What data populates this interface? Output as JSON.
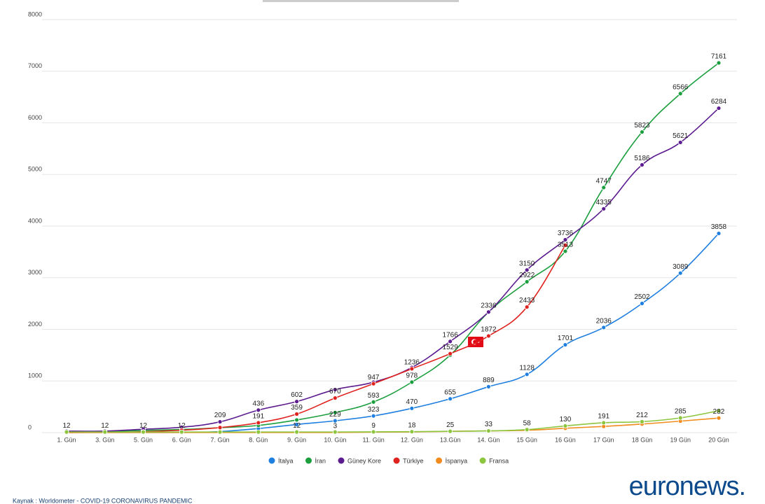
{
  "chart_data": {
    "type": "line",
    "categories": [
      "1. Gün",
      "3. Gün",
      "5. Gün",
      "6. Gün",
      "7. Gün",
      "8. Gün",
      "9. Gün",
      "10. Gün",
      "11. Gün",
      "12. Gün",
      "13.Gün",
      "14. Gün",
      "15 Gün",
      "16 Gün",
      "17 Gün",
      "18 Gün",
      "19 Gün",
      "20 Gün"
    ],
    "ylim": [
      0,
      8000
    ],
    "yticks": [
      0,
      1000,
      2000,
      3000,
      4000,
      5000,
      6000,
      7000,
      8000
    ],
    "grid": true,
    "legend": "bottom",
    "series": [
      {
        "name": "İtalya",
        "color": "#1f7fe0",
        "values": [
          3,
          3,
          3,
          3,
          20,
          79,
          157,
          229,
          323,
          470,
          655,
          889,
          1128,
          1701,
          2036,
          2502,
          3089,
          3858
        ],
        "value_labels": [
          null,
          null,
          null,
          null,
          null,
          null,
          null,
          "229",
          "323",
          "470",
          "655",
          "889",
          "1128",
          "1701",
          "2036",
          "2502",
          "3089",
          "3858"
        ]
      },
      {
        "name": "İran",
        "color": "#1b9e3e",
        "values": [
          2,
          18,
          43,
          61,
          95,
          139,
          245,
          388,
          593,
          978,
          1501,
          2336,
          2922,
          3513,
          4747,
          5823,
          6566,
          7161
        ],
        "value_labels": [
          null,
          null,
          null,
          null,
          null,
          null,
          null,
          null,
          "593",
          "978",
          null,
          null,
          "2922",
          "3513",
          "4747",
          "5823",
          "6566",
          "7161"
        ]
      },
      {
        "name": "Güney Kore",
        "color": "#5c1c8f",
        "values": [
          28,
          30,
          65,
          104,
          209,
          436,
          602,
          833,
          977,
          1261,
          1766,
          2336,
          3150,
          3736,
          4335,
          5186,
          5621,
          6284
        ],
        "value_labels": [
          null,
          null,
          null,
          null,
          "209",
          "436",
          "602",
          null,
          null,
          null,
          "1766",
          "2336",
          "3150",
          "3736",
          "4335",
          "5186",
          "5621",
          "6284"
        ]
      },
      {
        "name": "Türkiye",
        "color": "#e0221f",
        "values": [
          1,
          5,
          18,
          47,
          98,
          191,
          359,
          670,
          947,
          1236,
          1529,
          1872,
          2433,
          3629,
          null,
          null,
          null,
          null
        ],
        "value_labels": [
          null,
          null,
          null,
          null,
          null,
          "191",
          "359",
          "670",
          "947",
          "1236",
          "1529",
          "1872",
          "2433",
          null,
          null,
          null,
          null,
          null
        ]
      },
      {
        "name": "İspanya",
        "color": "#f28b1d",
        "values": [
          2,
          2,
          2,
          2,
          2,
          2,
          2,
          3,
          9,
          13,
          25,
          33,
          45,
          84,
          120,
          165,
          222,
          282
        ],
        "value_labels": [
          null,
          null,
          null,
          null,
          null,
          null,
          null,
          "3",
          "9",
          null,
          null,
          null,
          null,
          null,
          null,
          null,
          null,
          "282"
        ]
      },
      {
        "name": "Fransa",
        "color": "#8cc63f",
        "values": [
          12,
          12,
          12,
          12,
          12,
          12,
          12,
          12,
          14,
          18,
          25,
          33,
          58,
          130,
          191,
          212,
          285,
          423
        ],
        "value_labels": [
          "12",
          "12",
          "12",
          "12",
          null,
          null,
          "12",
          null,
          null,
          "18",
          "25",
          "33",
          "58",
          "130",
          "191",
          "212",
          "285",
          null
        ]
      }
    ]
  },
  "source": "Kaynak : Worldometer - COVID-19 CORONAVIRUS PANDEMIC",
  "logo": "euronews."
}
